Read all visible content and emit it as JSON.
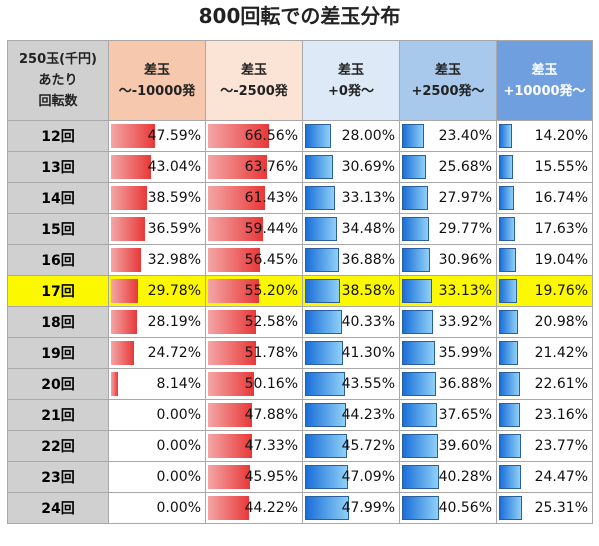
{
  "title": "800回転での差玉分布",
  "header": {
    "label_lines": [
      "250玉(千円)",
      "あたり",
      "回転数"
    ],
    "columns": [
      {
        "line1": "差玉",
        "line2": "～-10000発"
      },
      {
        "line1": "差玉",
        "line2": "～-2500発"
      },
      {
        "line1": "差玉",
        "line2": "+0発～"
      },
      {
        "line1": "差玉",
        "line2": "+2500発～"
      },
      {
        "line1": "差玉",
        "line2": "+10000発～"
      }
    ]
  },
  "highlight_row": "17回",
  "colors": {
    "highlight": "#fbf800",
    "red_bar": "#e83838",
    "blue_bar": "#1a6fd9",
    "header_gray": "#d0d0d0"
  },
  "chart_data": {
    "type": "table",
    "title": "800回転での差玉分布",
    "row_header": "250玉(千円)あたり回転数",
    "categories": [
      "12回",
      "13回",
      "14回",
      "15回",
      "16回",
      "17回",
      "18回",
      "19回",
      "20回",
      "21回",
      "22回",
      "23回",
      "24回"
    ],
    "series": [
      {
        "name": "差玉～-10000発",
        "values": [
          47.59,
          43.04,
          38.59,
          36.59,
          32.98,
          29.78,
          28.19,
          24.72,
          8.14,
          0.0,
          0.0,
          0.0,
          0.0
        ]
      },
      {
        "name": "差玉～-2500発",
        "values": [
          66.56,
          63.76,
          61.43,
          59.44,
          56.45,
          55.2,
          52.58,
          51.78,
          50.16,
          47.88,
          47.33,
          45.95,
          44.22
        ]
      },
      {
        "name": "差玉+0発～",
        "values": [
          28.0,
          30.69,
          33.13,
          34.48,
          36.88,
          38.58,
          40.33,
          41.3,
          43.55,
          44.23,
          45.72,
          47.09,
          47.99
        ]
      },
      {
        "name": "差玉+2500発～",
        "values": [
          23.4,
          25.68,
          27.97,
          29.77,
          30.96,
          33.13,
          33.92,
          35.99,
          36.88,
          37.65,
          39.6,
          40.28,
          40.56
        ]
      },
      {
        "name": "差玉+10000発～",
        "values": [
          14.2,
          15.55,
          16.74,
          17.63,
          19.04,
          19.76,
          20.98,
          21.42,
          22.61,
          23.16,
          23.77,
          24.47,
          25.31
        ]
      }
    ],
    "unit": "%",
    "bar_scale_max": 100
  }
}
